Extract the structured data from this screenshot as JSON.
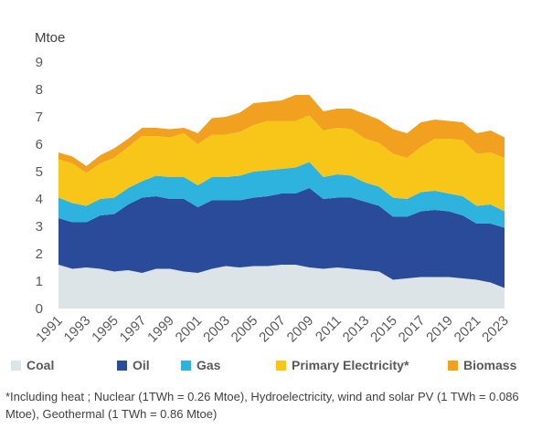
{
  "chart_data": {
    "type": "area",
    "stacked": true,
    "ylabel": "Mtoe",
    "ylim": [
      0,
      9
    ],
    "yticks": [
      0,
      1,
      2,
      3,
      4,
      5,
      6,
      7,
      8,
      9
    ],
    "grid": false,
    "legend_position": "bottom",
    "x": [
      1991,
      1992,
      1993,
      1994,
      1995,
      1996,
      1997,
      1998,
      1999,
      2000,
      2001,
      2002,
      2003,
      2004,
      2005,
      2006,
      2007,
      2008,
      2009,
      2010,
      2011,
      2012,
      2013,
      2014,
      2015,
      2016,
      2017,
      2018,
      2019,
      2020,
      2021,
      2022,
      2023
    ],
    "x_tick_labels": [
      "1991",
      "1993",
      "1995",
      "1997",
      "1999",
      "2001",
      "2003",
      "2005",
      "2007",
      "2009",
      "2011",
      "2013",
      "2015",
      "2017",
      "2019",
      "2021",
      "2023"
    ],
    "series": [
      {
        "name": "Coal",
        "color": "#dde4e7",
        "values": [
          1.6,
          1.45,
          1.5,
          1.45,
          1.35,
          1.4,
          1.3,
          1.45,
          1.45,
          1.35,
          1.3,
          1.45,
          1.55,
          1.5,
          1.55,
          1.55,
          1.6,
          1.6,
          1.5,
          1.45,
          1.5,
          1.45,
          1.4,
          1.35,
          1.05,
          1.1,
          1.15,
          1.15,
          1.15,
          1.1,
          1.05,
          0.95,
          0.75
        ]
      },
      {
        "name": "Oil",
        "color": "#2a4a9a",
        "values": [
          1.7,
          1.7,
          1.65,
          1.95,
          2.1,
          2.4,
          2.75,
          2.65,
          2.55,
          2.65,
          2.4,
          2.5,
          2.4,
          2.45,
          2.5,
          2.55,
          2.6,
          2.6,
          2.9,
          2.55,
          2.55,
          2.6,
          2.5,
          2.4,
          2.3,
          2.25,
          2.4,
          2.45,
          2.4,
          2.3,
          2.05,
          2.15,
          2.2
        ]
      },
      {
        "name": "Gas",
        "color": "#2eb3de",
        "values": [
          0.75,
          0.7,
          0.6,
          0.6,
          0.6,
          0.6,
          0.6,
          0.75,
          0.8,
          0.8,
          0.8,
          0.85,
          0.85,
          0.9,
          0.95,
          0.95,
          0.9,
          0.95,
          0.95,
          0.8,
          0.85,
          0.8,
          0.7,
          0.7,
          0.7,
          0.65,
          0.7,
          0.7,
          0.65,
          0.7,
          0.65,
          0.7,
          0.6
        ]
      },
      {
        "name": "Primary Electricity*",
        "color": "#f7c619",
        "values": [
          1.4,
          1.45,
          1.2,
          1.3,
          1.45,
          1.5,
          1.65,
          1.45,
          1.45,
          1.6,
          1.5,
          1.55,
          1.55,
          1.6,
          1.7,
          1.8,
          1.75,
          1.7,
          1.7,
          1.7,
          1.7,
          1.7,
          1.6,
          1.6,
          1.6,
          1.5,
          1.65,
          1.9,
          2.0,
          2.05,
          1.9,
          1.9,
          1.95
        ]
      },
      {
        "name": "Biomass",
        "color": "#f1a01f",
        "values": [
          0.25,
          0.25,
          0.25,
          0.3,
          0.35,
          0.3,
          0.3,
          0.3,
          0.3,
          0.2,
          0.4,
          0.6,
          0.65,
          0.7,
          0.8,
          0.7,
          0.75,
          0.95,
          0.75,
          0.7,
          0.7,
          0.75,
          0.9,
          0.85,
          0.9,
          0.9,
          0.9,
          0.7,
          0.65,
          0.65,
          0.75,
          0.8,
          0.75
        ]
      }
    ]
  },
  "footnote": "*Including heat ; Nuclear (1TWh = 0.26 Mtoe), Hydroelectricity, wind and solar PV (1 TWh = 0.086 Mtoe), Geothermal (1 TWh = 0.86 Mtoe)"
}
